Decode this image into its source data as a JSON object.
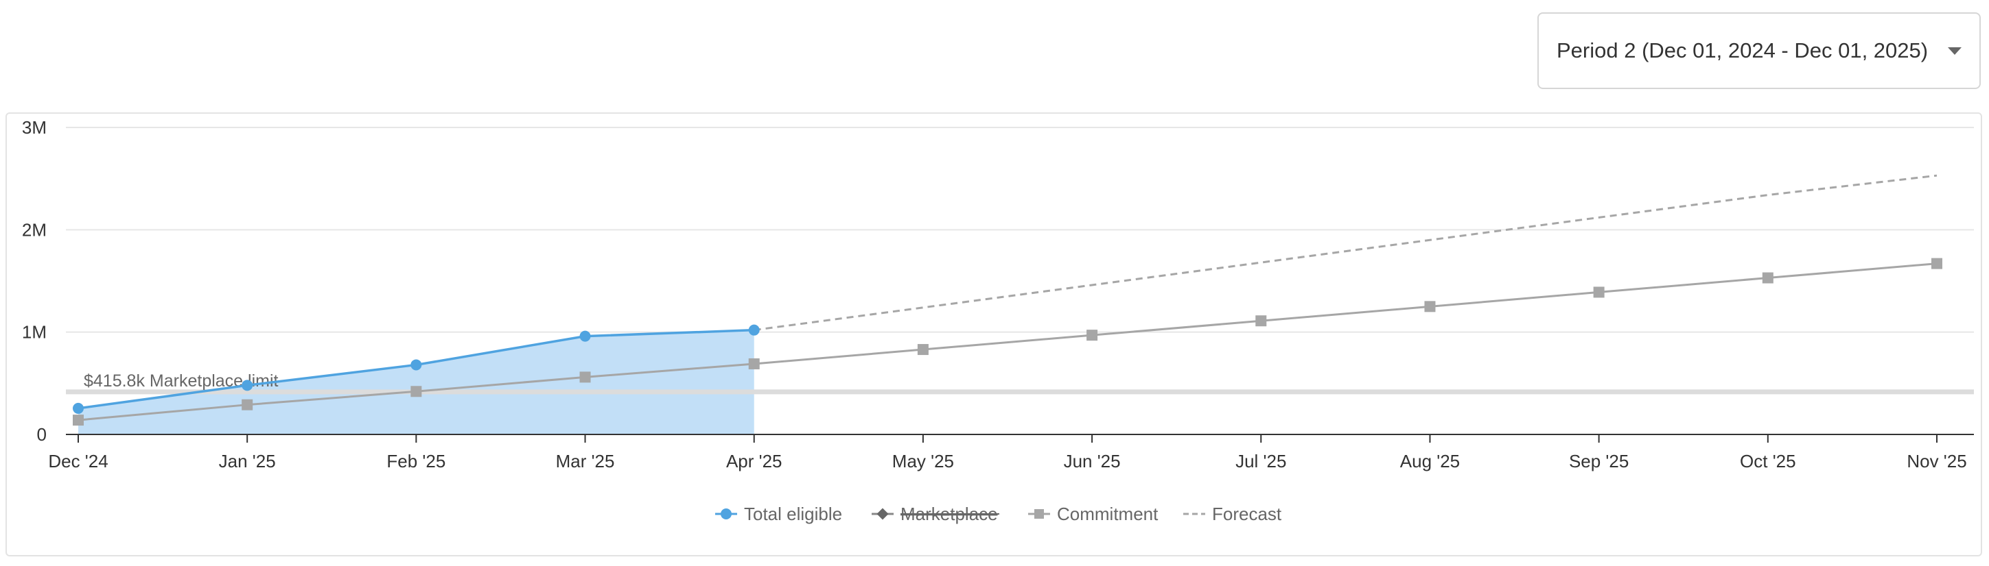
{
  "period_selector": {
    "label": "Period 2 (Dec 01, 2024 - Dec 01, 2025)"
  },
  "colors": {
    "total_eligible": "#4fa3e0",
    "total_eligible_fill": "#c2dff7",
    "marketplace": "#555555",
    "commitment": "#a6a6a6",
    "forecast": "#a6a6a6",
    "limit_line": "#dcdcdc",
    "grid": "#e6e6e6",
    "axis": "#333333"
  },
  "icons": {
    "period_dropdown": "chevron-down-icon"
  },
  "chart_data": {
    "type": "line",
    "categories": [
      "Dec '24",
      "Jan '25",
      "Feb '25",
      "Mar '25",
      "Apr '25",
      "May '25",
      "Jun '25",
      "Jul '25",
      "Aug '25",
      "Sep '25",
      "Oct '25",
      "Nov '25"
    ],
    "y_ticks": [
      0,
      1000000,
      2000000,
      3000000
    ],
    "y_tick_labels": [
      "0",
      "1M",
      "2M",
      "3M"
    ],
    "ylim": [
      0,
      3000000
    ],
    "grid": true,
    "legend_position": "bottom",
    "series": [
      {
        "name": "Total eligible",
        "style": "area-line-circle",
        "values": [
          255000,
          480000,
          680000,
          960000,
          1020000,
          null,
          null,
          null,
          null,
          null,
          null,
          null
        ]
      },
      {
        "name": "Marketplace",
        "style": "line-diamond",
        "hidden": true,
        "values": [
          null,
          null,
          null,
          null,
          null,
          null,
          null,
          null,
          null,
          null,
          null,
          null
        ]
      },
      {
        "name": "Commitment",
        "style": "line-square",
        "values": [
          140000,
          290000,
          420000,
          560000,
          690000,
          830000,
          970000,
          1110000,
          1250000,
          1390000,
          1530000,
          1670000
        ]
      },
      {
        "name": "Forecast",
        "style": "dashed",
        "values": [
          null,
          null,
          null,
          null,
          1020000,
          1240000,
          1460000,
          1680000,
          1900000,
          2120000,
          2340000,
          2530000
        ]
      }
    ],
    "annotations": [
      {
        "type": "horizontal-line",
        "value": 415800,
        "label": "$415.8k Marketplace limit"
      }
    ]
  }
}
